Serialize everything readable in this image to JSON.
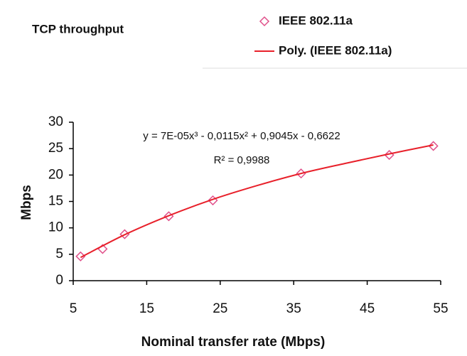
{
  "chart_data": {
    "type": "scatter",
    "title": "TCP throughput",
    "xlabel": "Nominal transfer rate (Mbps)",
    "ylabel": "Mbps",
    "xlim": [
      5,
      55
    ],
    "xticks": [
      5,
      15,
      25,
      35,
      45,
      55
    ],
    "ylim": [
      0,
      30
    ],
    "yticks": [
      0,
      5,
      10,
      15,
      20,
      25,
      30
    ],
    "grid": false,
    "legend": "top-right",
    "series": [
      {
        "name": "IEEE 802.11a",
        "type": "scatter",
        "marker": "diamond",
        "color": "#e0508a",
        "x": [
          6,
          9,
          12,
          18,
          24,
          36,
          48,
          54
        ],
        "values": [
          4.6,
          6.0,
          8.8,
          12.2,
          15.2,
          20.3,
          23.8,
          25.5
        ]
      },
      {
        "name": "Poly. (IEEE 802.11a)",
        "type": "line",
        "color": "#e8202a",
        "x": [
          6,
          12,
          18,
          24,
          30,
          36,
          42,
          48,
          54
        ],
        "values": [
          4.4,
          8.7,
          12.3,
          15.4,
          18.0,
          20.3,
          22.2,
          24.0,
          25.7
        ]
      }
    ],
    "annotations": [
      "y = 7E-05x³ - 0,0115x² + 0,9045x - 0,6622",
      "R² = 0,9988"
    ]
  }
}
